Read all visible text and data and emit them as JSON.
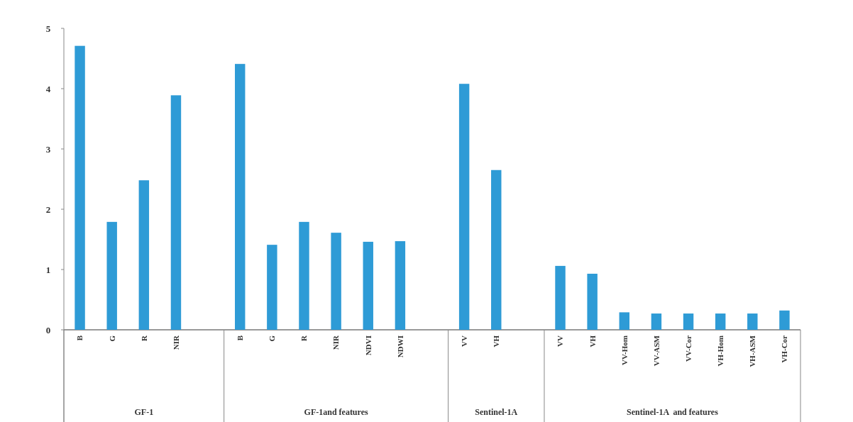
{
  "chart_data": {
    "type": "bar",
    "categories": [
      "B",
      "G",
      "R",
      "NIR",
      null,
      "B",
      "G",
      "R",
      "NIR",
      "NDVI",
      "NDWI",
      null,
      "VV",
      "VH",
      null,
      "VV",
      "VH",
      "VV-Hom",
      "VV-ASM",
      "VV-Cor",
      "VH-Hom",
      "VH-ASM",
      "VH-Cor"
    ],
    "values": [
      4.71,
      1.79,
      2.48,
      3.89,
      null,
      4.41,
      1.41,
      1.79,
      1.61,
      1.46,
      1.47,
      null,
      4.08,
      2.65,
      null,
      1.06,
      0.93,
      0.29,
      0.27,
      0.27,
      0.27,
      0.27,
      0.32
    ],
    "color": "#2e9bd6",
    "ylim": [
      0,
      5
    ],
    "yticks": [
      0,
      1,
      2,
      3,
      4,
      5
    ],
    "annotations": [
      "GF-1",
      "GF-1and features",
      "Sentinel-1A",
      "Sentinel-1A  and features"
    ]
  }
}
